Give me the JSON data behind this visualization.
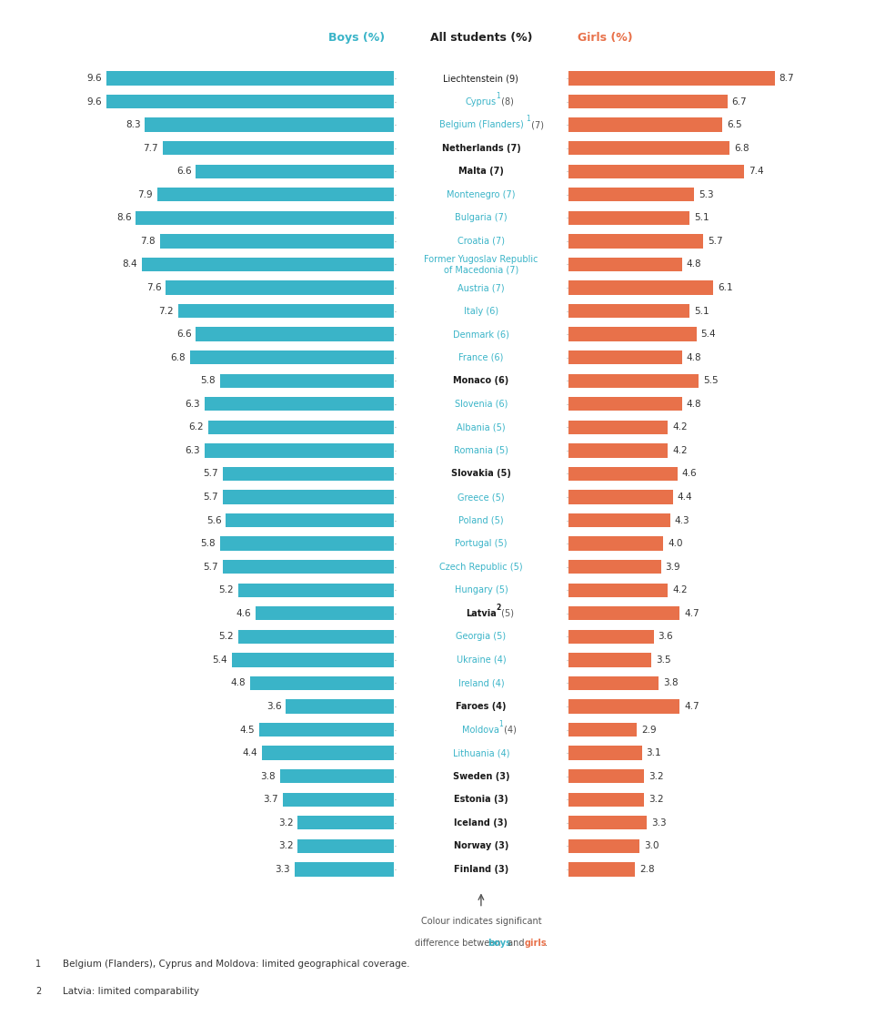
{
  "countries": [
    {
      "name": "Liechtenstein",
      "all": 9,
      "boys": 9.6,
      "girls": 8.7,
      "name_color": "#1a1a1a",
      "bold": false
    },
    {
      "name": "Cyprus",
      "sup": "1",
      "all": 8,
      "boys": 9.6,
      "girls": 6.7,
      "name_color": "#3ab4c8",
      "bold": false
    },
    {
      "name": "Belgium (Flanders)",
      "sup": "1",
      "all": 7,
      "boys": 8.3,
      "girls": 6.5,
      "name_color": "#3ab4c8",
      "bold": false
    },
    {
      "name": "Netherlands",
      "all": 7,
      "boys": 7.7,
      "girls": 6.8,
      "name_color": "#1a1a1a",
      "bold": true
    },
    {
      "name": "Malta",
      "all": 7,
      "boys": 6.6,
      "girls": 7.4,
      "name_color": "#1a1a1a",
      "bold": true
    },
    {
      "name": "Montenegro",
      "all": 7,
      "boys": 7.9,
      "girls": 5.3,
      "name_color": "#3ab4c8",
      "bold": false
    },
    {
      "name": "Bulgaria",
      "all": 7,
      "boys": 8.6,
      "girls": 5.1,
      "name_color": "#3ab4c8",
      "bold": false
    },
    {
      "name": "Croatia",
      "all": 7,
      "boys": 7.8,
      "girls": 5.7,
      "name_color": "#3ab4c8",
      "bold": false
    },
    {
      "name": "Former Yugoslav Republic\nof Macedonia",
      "all": 7,
      "boys": 8.4,
      "girls": 4.8,
      "name_color": "#3ab4c8",
      "bold": false
    },
    {
      "name": "Austria",
      "all": 7,
      "boys": 7.6,
      "girls": 6.1,
      "name_color": "#3ab4c8",
      "bold": false
    },
    {
      "name": "Italy",
      "all": 6,
      "boys": 7.2,
      "girls": 5.1,
      "name_color": "#3ab4c8",
      "bold": false
    },
    {
      "name": "Denmark",
      "all": 6,
      "boys": 6.6,
      "girls": 5.4,
      "name_color": "#3ab4c8",
      "bold": false
    },
    {
      "name": "France",
      "all": 6,
      "boys": 6.8,
      "girls": 4.8,
      "name_color": "#3ab4c8",
      "bold": false
    },
    {
      "name": "Monaco",
      "all": 6,
      "boys": 5.8,
      "girls": 5.5,
      "name_color": "#1a1a1a",
      "bold": true
    },
    {
      "name": "Slovenia",
      "all": 6,
      "boys": 6.3,
      "girls": 4.8,
      "name_color": "#3ab4c8",
      "bold": false
    },
    {
      "name": "Albania",
      "all": 5,
      "boys": 6.2,
      "girls": 4.2,
      "name_color": "#3ab4c8",
      "bold": false
    },
    {
      "name": "Romania",
      "all": 5,
      "boys": 6.3,
      "girls": 4.2,
      "name_color": "#3ab4c8",
      "bold": false
    },
    {
      "name": "Slovakia",
      "all": 5,
      "boys": 5.7,
      "girls": 4.6,
      "name_color": "#1a1a1a",
      "bold": true
    },
    {
      "name": "Greece",
      "all": 5,
      "boys": 5.7,
      "girls": 4.4,
      "name_color": "#3ab4c8",
      "bold": false
    },
    {
      "name": "Poland",
      "all": 5,
      "boys": 5.6,
      "girls": 4.3,
      "name_color": "#3ab4c8",
      "bold": false
    },
    {
      "name": "Portugal",
      "all": 5,
      "boys": 5.8,
      "girls": 4.0,
      "name_color": "#3ab4c8",
      "bold": false
    },
    {
      "name": "Czech Republic",
      "all": 5,
      "boys": 5.7,
      "girls": 3.9,
      "name_color": "#3ab4c8",
      "bold": false
    },
    {
      "name": "Hungary",
      "all": 5,
      "boys": 5.2,
      "girls": 4.2,
      "name_color": "#3ab4c8",
      "bold": false
    },
    {
      "name": "Latvia",
      "sup": "2",
      "all": 5,
      "boys": 4.6,
      "girls": 4.7,
      "name_color": "#1a1a1a",
      "bold": true
    },
    {
      "name": "Georgia",
      "all": 5,
      "boys": 5.2,
      "girls": 3.6,
      "name_color": "#3ab4c8",
      "bold": false
    },
    {
      "name": "Ukraine",
      "all": 4,
      "boys": 5.4,
      "girls": 3.5,
      "name_color": "#3ab4c8",
      "bold": false
    },
    {
      "name": "Ireland",
      "all": 4,
      "boys": 4.8,
      "girls": 3.8,
      "name_color": "#3ab4c8",
      "bold": false
    },
    {
      "name": "Faroes",
      "all": 4,
      "boys": 3.6,
      "girls": 4.7,
      "name_color": "#1a1a1a",
      "bold": true
    },
    {
      "name": "Moldova",
      "sup": "1",
      "all": 4,
      "boys": 4.5,
      "girls": 2.9,
      "name_color": "#3ab4c8",
      "bold": false
    },
    {
      "name": "Lithuania",
      "all": 4,
      "boys": 4.4,
      "girls": 3.1,
      "name_color": "#3ab4c8",
      "bold": false
    },
    {
      "name": "Sweden",
      "all": 3,
      "boys": 3.8,
      "girls": 3.2,
      "name_color": "#1a1a1a",
      "bold": true
    },
    {
      "name": "Estonia",
      "all": 3,
      "boys": 3.7,
      "girls": 3.2,
      "name_color": "#1a1a1a",
      "bold": true
    },
    {
      "name": "Iceland",
      "all": 3,
      "boys": 3.2,
      "girls": 3.3,
      "name_color": "#1a1a1a",
      "bold": true
    },
    {
      "name": "Norway",
      "all": 3,
      "boys": 3.2,
      "girls": 3.0,
      "name_color": "#1a1a1a",
      "bold": true
    },
    {
      "name": "Finland",
      "all": 3,
      "boys": 3.3,
      "girls": 2.8,
      "name_color": "#1a1a1a",
      "bold": true
    }
  ],
  "boys_color": "#3ab4c8",
  "girls_color": "#e8714a",
  "max_boys": 10.0,
  "max_girls": 10.0,
  "bar_height": 0.6,
  "footnote1": "Belgium (Flanders), Cyprus and Moldova: limited geographical coverage.",
  "footnote2": "Latvia: limited comparability"
}
